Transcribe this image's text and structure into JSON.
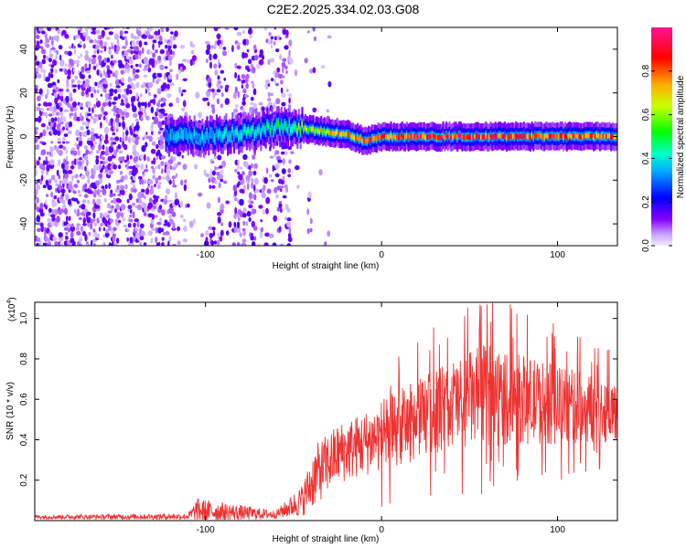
{
  "title": "C2E2.2025.334.02.03.G08",
  "chart_data": [
    {
      "type": "heatmap",
      "name": "spectrogram",
      "xlabel": "Height of straight line (km)",
      "ylabel": "Frequency (Hz)",
      "xlim": [
        -197,
        134
      ],
      "ylim": [
        -50,
        50
      ],
      "x_ticks": [
        -100,
        0,
        100
      ],
      "y_ticks": [
        -40,
        -20,
        0,
        20,
        40
      ],
      "colorbar": {
        "label": "Normalized spectral amplitude",
        "range": [
          0.0,
          1.0
        ],
        "ticks": [
          0.0,
          0.2,
          0.4,
          0.6,
          0.8
        ],
        "colormap": [
          "#ffffff",
          "#8800ff",
          "#0000ff",
          "#00ffff",
          "#00ff00",
          "#ffff00",
          "#ff8800",
          "#ff0000",
          "#ff00aa"
        ]
      },
      "ridge": {
        "description_points": [
          {
            "x": -123,
            "y": 0,
            "amp": 0.35
          },
          {
            "x": -100,
            "y": 0,
            "amp": 0.4
          },
          {
            "x": -75,
            "y": 2,
            "amp": 0.45
          },
          {
            "x": -55,
            "y": 5,
            "amp": 0.5
          },
          {
            "x": -40,
            "y": 3,
            "amp": 0.7
          },
          {
            "x": -20,
            "y": 1,
            "amp": 0.8
          },
          {
            "x": -10,
            "y": -2,
            "amp": 0.85
          },
          {
            "x": 0,
            "y": 0,
            "amp": 0.9
          },
          {
            "x": 50,
            "y": 0,
            "amp": 0.95
          },
          {
            "x": 100,
            "y": 0,
            "amp": 0.9
          },
          {
            "x": 134,
            "y": 0,
            "amp": 0.85
          }
        ]
      }
    },
    {
      "type": "line",
      "name": "snr",
      "xlabel": "Height of straight line (km)",
      "ylabel": "SNR (10 * v/v)",
      "scale_label": "(x10",
      "scale_exponent": "4",
      "scale_close": ")",
      "xlim": [
        -197,
        134
      ],
      "ylim": [
        0,
        1.08
      ],
      "x_ticks": [
        -100,
        0,
        100
      ],
      "y_ticks": [
        0.2,
        0.4,
        0.6,
        0.8,
        1.0
      ],
      "color": "#ee3333",
      "envelope": [
        {
          "x": -197,
          "mean": 0.018,
          "spread": 0.01
        },
        {
          "x": -110,
          "mean": 0.02,
          "spread": 0.015
        },
        {
          "x": -105,
          "mean": 0.05,
          "spread": 0.06
        },
        {
          "x": -60,
          "mean": 0.03,
          "spread": 0.02
        },
        {
          "x": -45,
          "mean": 0.1,
          "spread": 0.08
        },
        {
          "x": -38,
          "mean": 0.22,
          "spread": 0.15
        },
        {
          "x": -25,
          "mean": 0.33,
          "spread": 0.15
        },
        {
          "x": -10,
          "mean": 0.38,
          "spread": 0.16
        },
        {
          "x": 0,
          "mean": 0.42,
          "spread": 0.18
        },
        {
          "x": 20,
          "mean": 0.5,
          "spread": 0.2
        },
        {
          "x": 40,
          "mean": 0.58,
          "spread": 0.22
        },
        {
          "x": 60,
          "mean": 0.62,
          "spread": 0.26
        },
        {
          "x": 80,
          "mean": 0.6,
          "spread": 0.22
        },
        {
          "x": 100,
          "mean": 0.57,
          "spread": 0.2
        },
        {
          "x": 134,
          "mean": 0.54,
          "spread": 0.15
        }
      ],
      "peak": {
        "x": 60,
        "y": 1.07
      }
    }
  ]
}
